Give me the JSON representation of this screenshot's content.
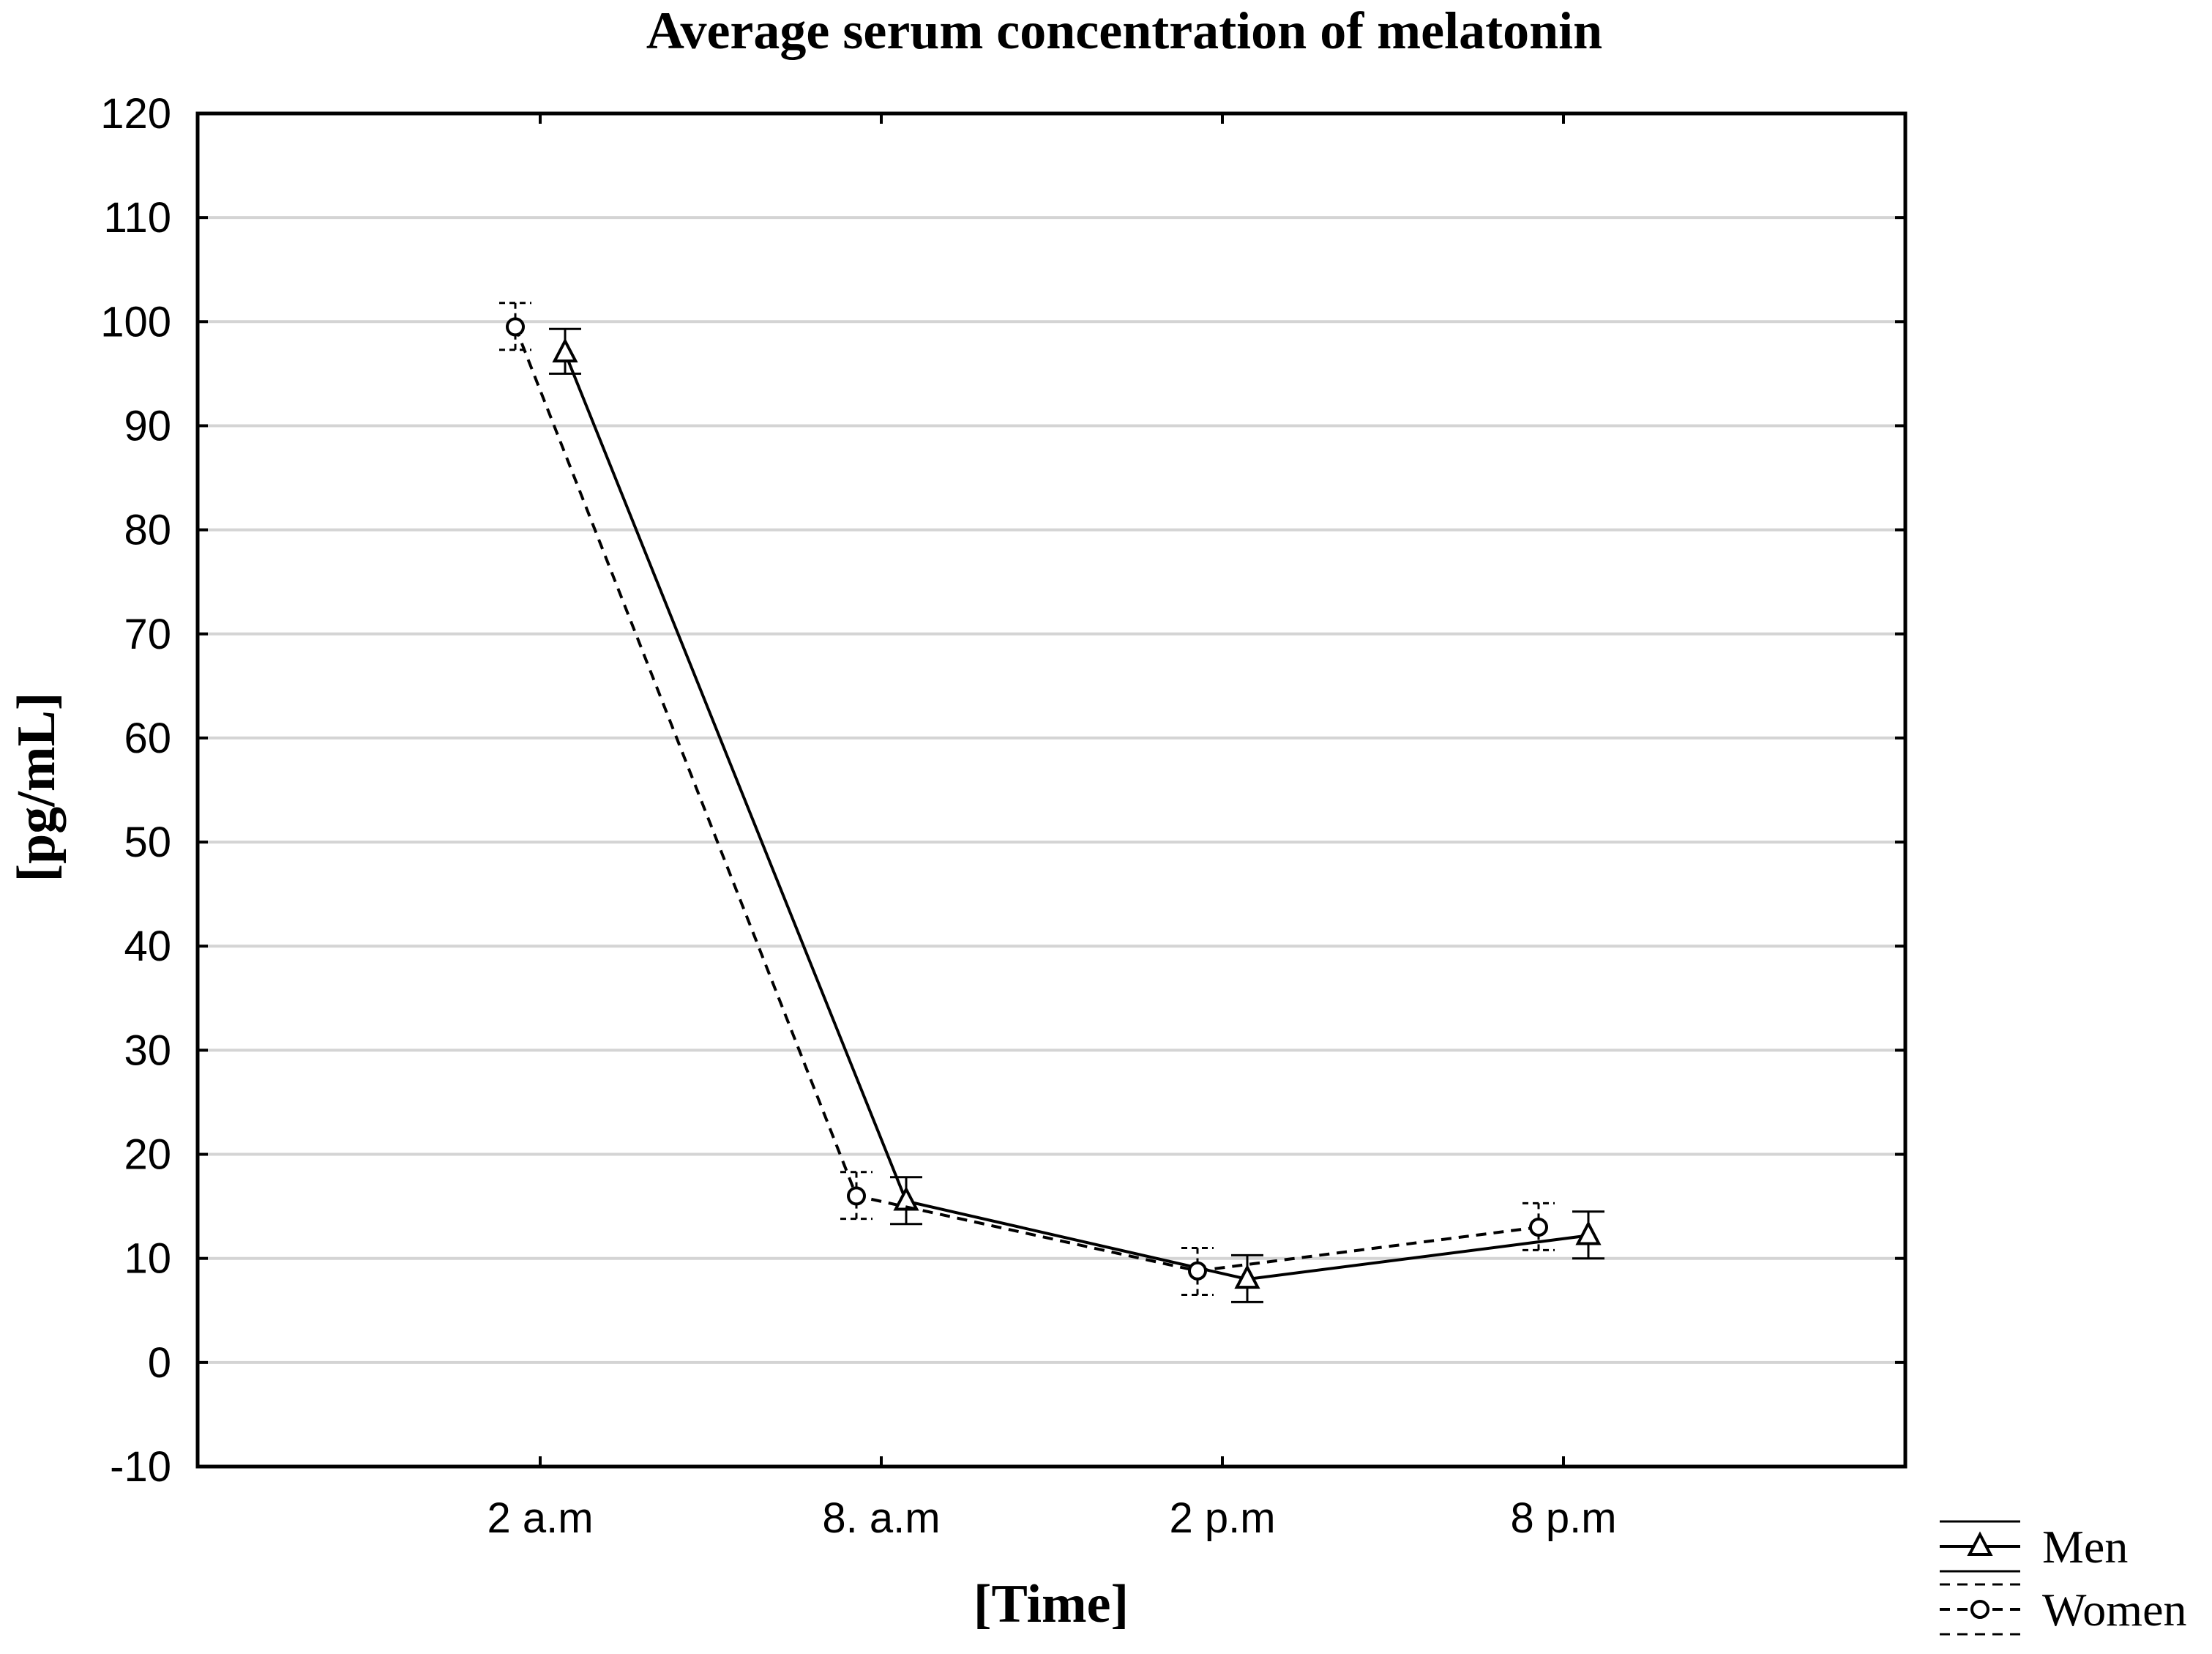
{
  "chart_data": {
    "type": "line",
    "title": "Average serum concentration of melatonin",
    "xlabel": "[Time]",
    "ylabel": "[pg/mL]",
    "categories": [
      "2 a.m",
      "8. a.m",
      "2 p.m",
      "8 p.m"
    ],
    "ylim": [
      -10,
      120
    ],
    "yticks": [
      -10,
      0,
      10,
      20,
      30,
      40,
      50,
      60,
      70,
      80,
      90,
      100,
      110,
      120
    ],
    "grid": true,
    "legend_position": "bottom-right outside",
    "series": [
      {
        "name": "Men",
        "marker": "triangle",
        "line_style": "solid",
        "color": "#000000",
        "values": [
          97.0,
          15.5,
          8.0,
          12.2
        ],
        "error_low": [
          95.0,
          13.3,
          5.8,
          10.0
        ],
        "error_high": [
          99.3,
          17.8,
          10.3,
          14.5
        ]
      },
      {
        "name": "Women",
        "marker": "circle",
        "line_style": "dashed",
        "color": "#000000",
        "values": [
          99.5,
          16.0,
          8.8,
          13.0
        ],
        "error_low": [
          97.3,
          13.8,
          6.5,
          10.8
        ],
        "error_high": [
          101.8,
          18.3,
          11.0,
          15.3
        ]
      }
    ]
  }
}
